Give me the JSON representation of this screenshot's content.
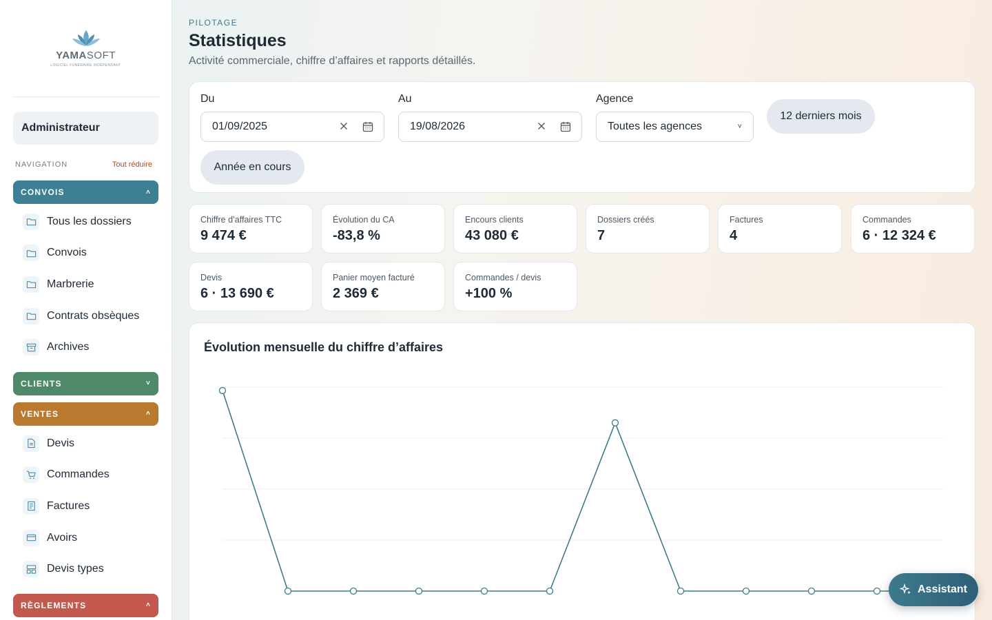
{
  "sidebar": {
    "logo": {
      "brand_a": "YAMA",
      "brand_b": "SOFT",
      "tagline": "LOGICIEL FUNÉRAIRE INDÉPENDANT"
    },
    "user_label": "Administrateur",
    "nav_label": "NAVIGATION",
    "collapse_all": "Tout réduire",
    "sections": {
      "convois": {
        "label": "CONVOIS",
        "color": "#3d7f93",
        "expanded": true,
        "items": [
          {
            "label": "Tous les dossiers",
            "icon": "folder-icon"
          },
          {
            "label": "Convois",
            "icon": "folder-icon"
          },
          {
            "label": "Marbrerie",
            "icon": "folder-icon"
          },
          {
            "label": "Contrats obsèques",
            "icon": "folder-icon"
          },
          {
            "label": "Archives",
            "icon": "archive-icon"
          }
        ]
      },
      "clients": {
        "label": "CLIENTS",
        "color": "#4e8a6a",
        "expanded": false
      },
      "ventes": {
        "label": "VENTES",
        "color": "#b97a30",
        "expanded": true,
        "items": [
          {
            "label": "Devis",
            "icon": "document-icon"
          },
          {
            "label": "Commandes",
            "icon": "cart-icon"
          },
          {
            "label": "Factures",
            "icon": "invoice-icon"
          },
          {
            "label": "Avoirs",
            "icon": "credit-card-icon"
          },
          {
            "label": "Devis types",
            "icon": "template-icon"
          }
        ]
      },
      "reglements": {
        "label": "RÈGLEMENTS",
        "color": "#c2584e",
        "expanded": true
      }
    }
  },
  "header": {
    "eyebrow": "PILOTAGE",
    "title": "Statistiques",
    "subtitle": "Activité commerciale, chiffre d’affaires et rapports détaillés."
  },
  "filters": {
    "from_label": "Du",
    "from_value": "01/09/2025",
    "to_label": "Au",
    "to_value": "19/08/2026",
    "agency_label": "Agence",
    "agency_value": "Toutes les agences",
    "preset_12m": "12 derniers mois",
    "preset_year": "Année en cours"
  },
  "kpis": [
    {
      "label": "Chiffre d’affaires TTC",
      "value": "9 474 €"
    },
    {
      "label": "Évolution du CA",
      "value": "-83,8 %"
    },
    {
      "label": "Encours clients",
      "value": "43 080 €"
    },
    {
      "label": "Dossiers créés",
      "value": "7"
    },
    {
      "label": "Factures",
      "value": "4"
    },
    {
      "label": "Commandes",
      "value": "6 · 12 324 €"
    },
    {
      "label": "Devis",
      "value": "6 · 13 690 €"
    },
    {
      "label": "Panier moyen facturé",
      "value": "2 369 €"
    },
    {
      "label": "Commandes / devis",
      "value": "+100 %"
    }
  ],
  "chart": {
    "title": "Évolution mensuelle du chiffre d’affaires",
    "line_color": "#3d7a8c"
  },
  "chart_data": {
    "type": "line",
    "title": "Évolution mensuelle du chiffre d’affaires",
    "series": [
      {
        "values": [
          5900,
          0,
          0,
          0,
          0,
          0,
          4950,
          0,
          0,
          0,
          0,
          0
        ]
      }
    ],
    "ylim": [
      0,
      6000
    ],
    "grid": true
  },
  "assistant": {
    "label": "Assistant"
  }
}
